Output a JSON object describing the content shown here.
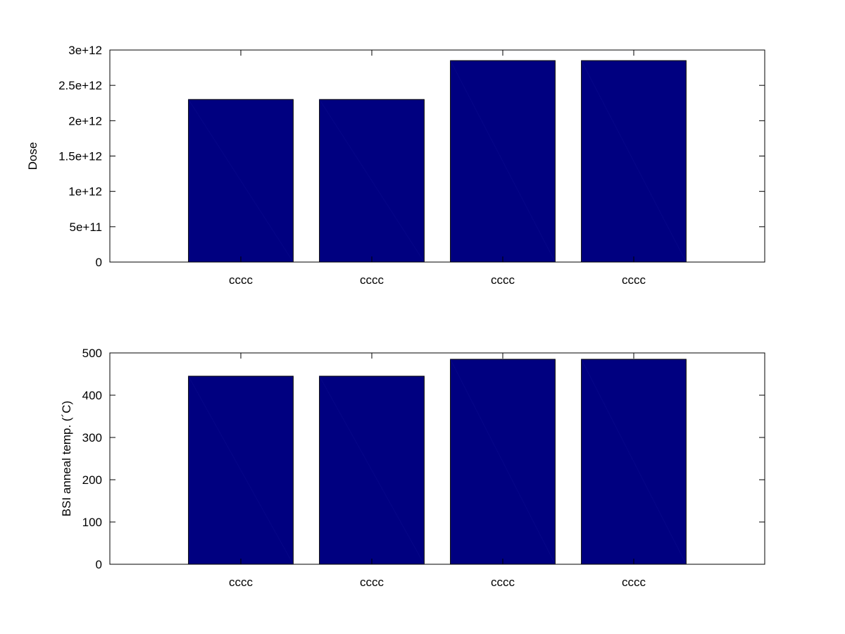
{
  "chart_data": [
    {
      "type": "bar",
      "categories": [
        "cccc",
        "cccc",
        "cccc",
        "cccc"
      ],
      "values": [
        2300000000000.0,
        2300000000000.0,
        2850000000000.0,
        2850000000000.0
      ],
      "title": "",
      "xlabel": "",
      "ylabel": "Dose",
      "ylim": [
        0,
        3000000000000.0
      ],
      "yticks": [
        0,
        500000000000.0,
        1000000000000.0,
        1500000000000.0,
        2000000000000.0,
        2500000000000.0,
        3000000000000.0
      ],
      "ytick_labels": [
        "0",
        "5e+11",
        "1e+12",
        "1.5e+12",
        "2e+12",
        "2.5e+12",
        "3e+12"
      ],
      "xlim": [
        0,
        5
      ],
      "bar_color": "#000080",
      "grid": false,
      "legend": "none"
    },
    {
      "type": "bar",
      "categories": [
        "cccc",
        "cccc",
        "cccc",
        "cccc"
      ],
      "values": [
        445,
        445,
        485,
        485
      ],
      "title": "",
      "xlabel": "",
      "ylabel": "BSI anneal temp. (´C)",
      "ylim": [
        0,
        500
      ],
      "yticks": [
        0,
        100,
        200,
        300,
        400,
        500
      ],
      "ytick_labels": [
        "0",
        "100",
        "200",
        "300",
        "400",
        "500"
      ],
      "xlim": [
        0,
        5
      ],
      "bar_color": "#000080",
      "grid": false,
      "legend": "none"
    }
  ]
}
